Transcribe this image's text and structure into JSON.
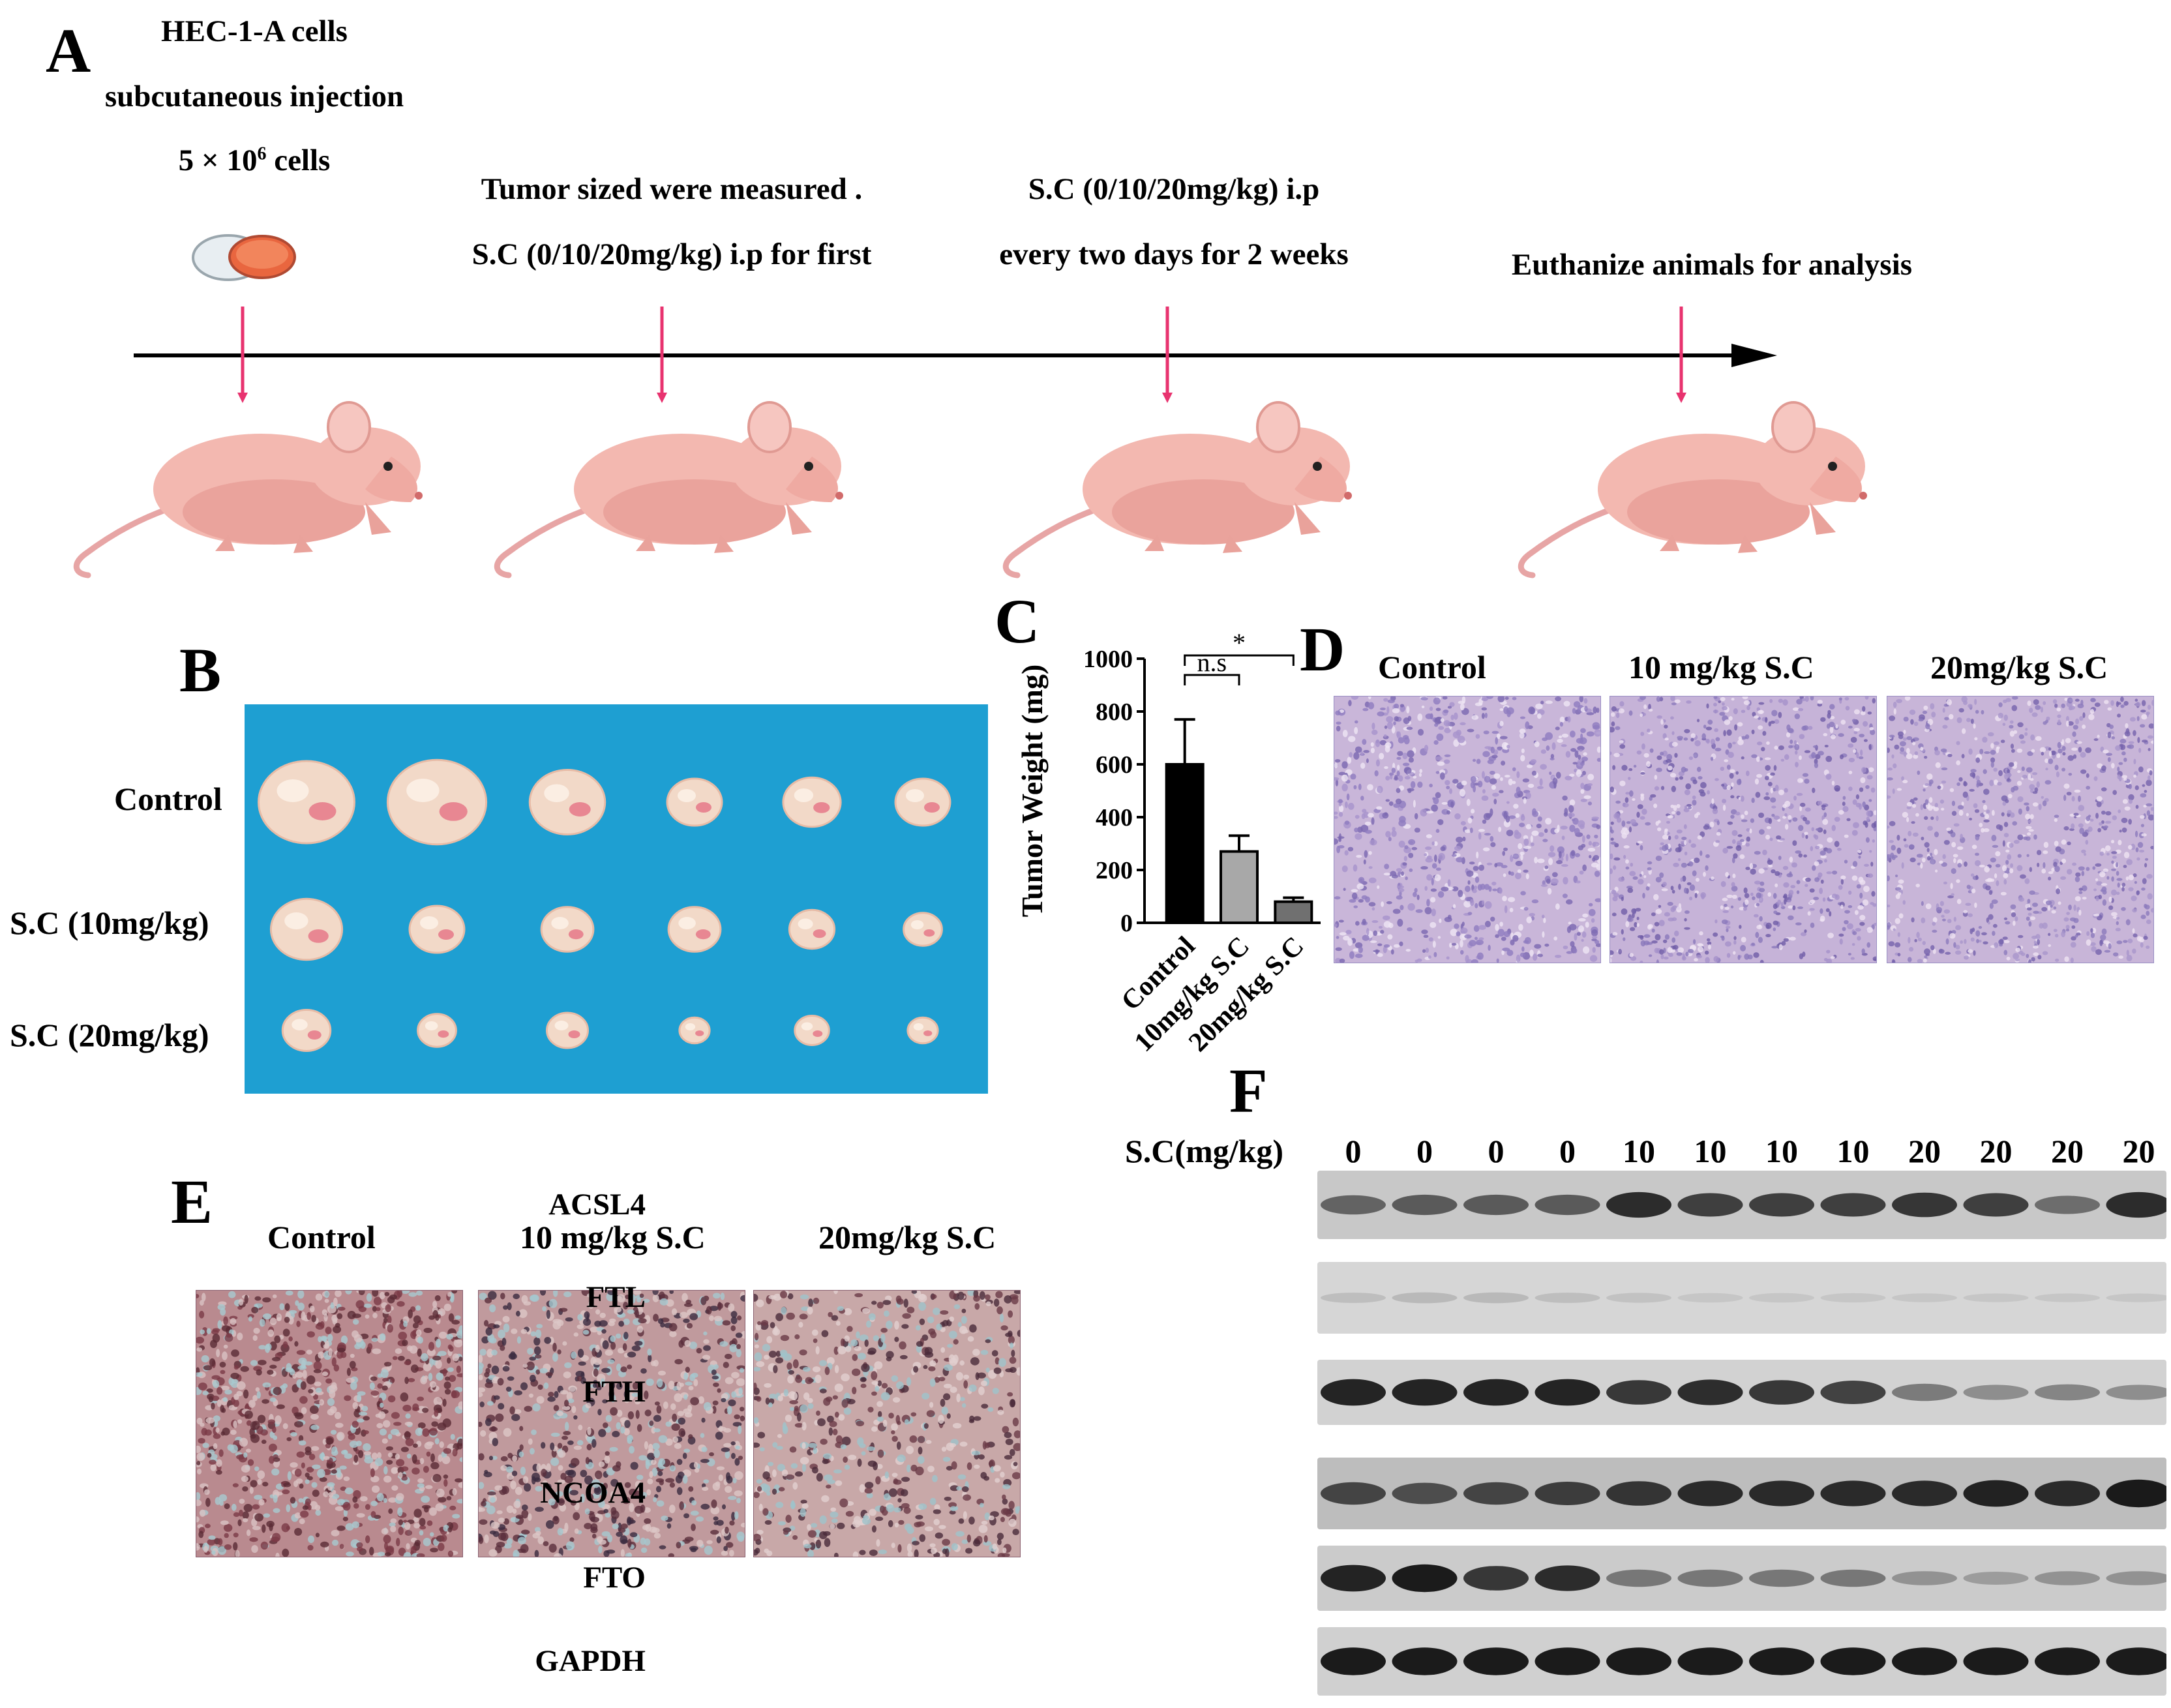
{
  "panels": {
    "a": "A",
    "b": "B",
    "c": "C",
    "d": "D",
    "e": "E",
    "f": "F"
  },
  "timeline": {
    "step1_line1": "HEC-1-A cells",
    "step1_line2": "subcutaneous injection",
    "step1_line3_pre": "5 × 10",
    "step1_line3_sup": "6",
    "step1_line3_post": " cells",
    "step2_line1": "Tumor sized were measured .",
    "step2_line2": "S.C (0/10/20mg/kg) i.p for first",
    "step3_line1": "S.C (0/10/20mg/kg) i.p",
    "step3_line2": "every two days for 2 weeks",
    "step4_line1": "Euthanize animals for analysis",
    "colors": {
      "arrow": "#e8336f",
      "axis": "#000000"
    }
  },
  "photo_b": {
    "row_labels": [
      "Control",
      "S.C (10mg/kg)",
      "S.C (20mg/kg)"
    ],
    "background_color": "#1e9fd2"
  },
  "chart_data": {
    "type": "bar",
    "ylabel": "Tumor Weight (mg)",
    "categories": [
      "Control",
      "10mg/kg S.C",
      "20mg/kg S.C"
    ],
    "values": [
      600,
      270,
      80
    ],
    "errors": [
      170,
      60,
      15
    ],
    "ylim": [
      0,
      1000
    ],
    "yticks": [
      0,
      200,
      400,
      600,
      800,
      1000
    ],
    "bar_colors": [
      "#000000",
      "#a8a8a8",
      "#707070"
    ],
    "significance": [
      {
        "label": "n.s",
        "from": "Control",
        "to": "10mg/kg S.C"
      },
      {
        "label": "*",
        "from": "Control",
        "to": "20mg/kg S.C"
      }
    ]
  },
  "he_stain": {
    "labels": [
      "Control",
      "10 mg/kg S.C",
      "20mg/kg S.C"
    ]
  },
  "ihc": {
    "labels": [
      "Control",
      "10 mg/kg S.C",
      "20mg/kg S.C"
    ]
  },
  "western": {
    "dose_label": "S.C(mg/kg)",
    "doses": [
      "0",
      "0",
      "0",
      "0",
      "10",
      "10",
      "10",
      "10",
      "20",
      "20",
      "20",
      "20"
    ],
    "proteins": [
      "ACSL4",
      "FTL",
      "FTH",
      "NCOA4",
      "FTO",
      "GAPDH"
    ],
    "intensities": {
      "ACSL4": [
        0.55,
        0.6,
        0.6,
        0.6,
        0.85,
        0.75,
        0.75,
        0.75,
        0.8,
        0.75,
        0.5,
        0.85
      ],
      "FTL": [
        0.12,
        0.15,
        0.14,
        0.12,
        0.1,
        0.08,
        0.08,
        0.07,
        0.05,
        0.04,
        0.04,
        0.04
      ],
      "FTH": [
        0.9,
        0.9,
        0.9,
        0.9,
        0.8,
        0.85,
        0.8,
        0.75,
        0.45,
        0.35,
        0.4,
        0.35
      ],
      "NCOA4": [
        0.7,
        0.65,
        0.7,
        0.75,
        0.8,
        0.85,
        0.85,
        0.85,
        0.85,
        0.9,
        0.85,
        0.95
      ],
      "FTO": [
        0.9,
        0.95,
        0.8,
        0.85,
        0.45,
        0.45,
        0.45,
        0.45,
        0.3,
        0.25,
        0.3,
        0.3
      ],
      "GAPDH": [
        0.95,
        0.95,
        0.95,
        0.95,
        0.95,
        0.95,
        0.95,
        0.95,
        0.95,
        0.95,
        0.95,
        0.95
      ]
    }
  }
}
